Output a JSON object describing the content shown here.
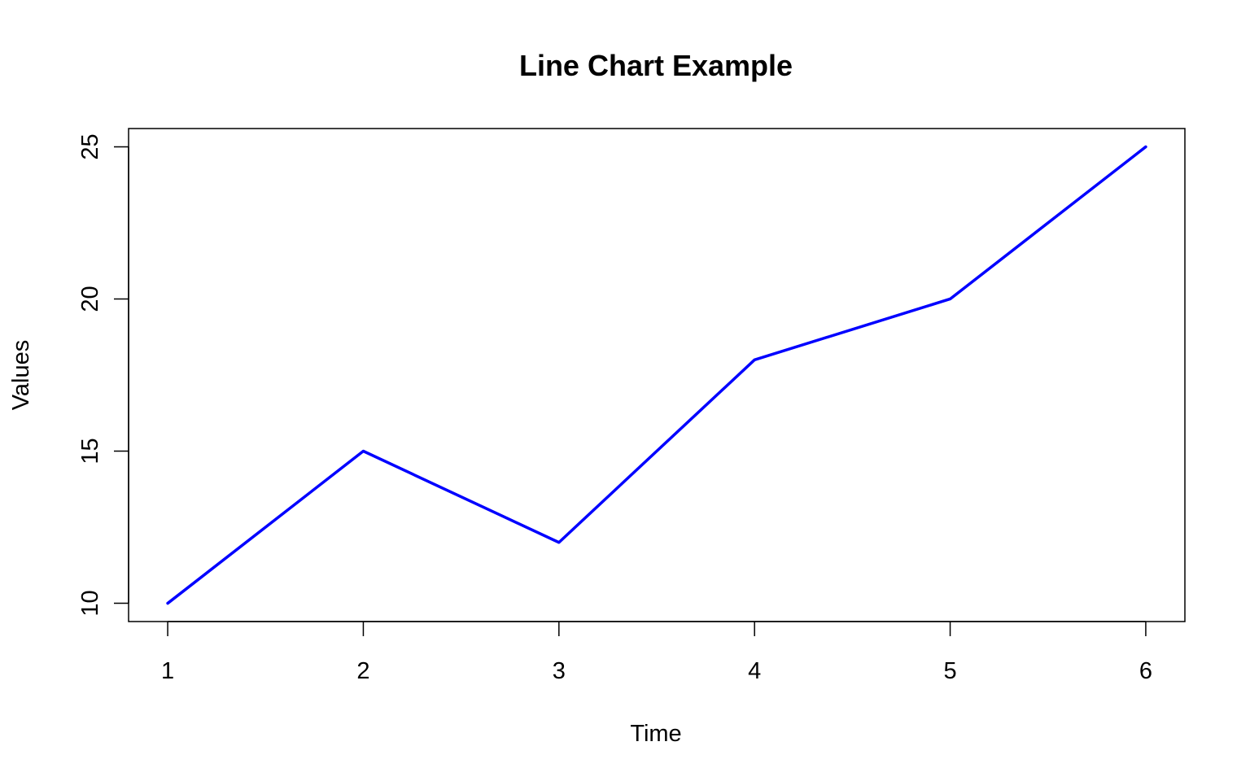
{
  "chart_data": {
    "type": "line",
    "title": "Line Chart Example",
    "xlabel": "Time",
    "ylabel": "Values",
    "x": [
      1,
      2,
      3,
      4,
      5,
      6
    ],
    "series": [
      {
        "values": [
          10,
          15,
          12,
          18,
          20,
          25
        ],
        "color": "#0000ff"
      }
    ],
    "xlim": [
      0.8,
      6.2
    ],
    "ylim": [
      9.4,
      25.6
    ],
    "xticks": [
      1,
      2,
      3,
      4,
      5,
      6
    ],
    "yticks": [
      10,
      15,
      20,
      25
    ],
    "grid": false,
    "frame": true
  }
}
